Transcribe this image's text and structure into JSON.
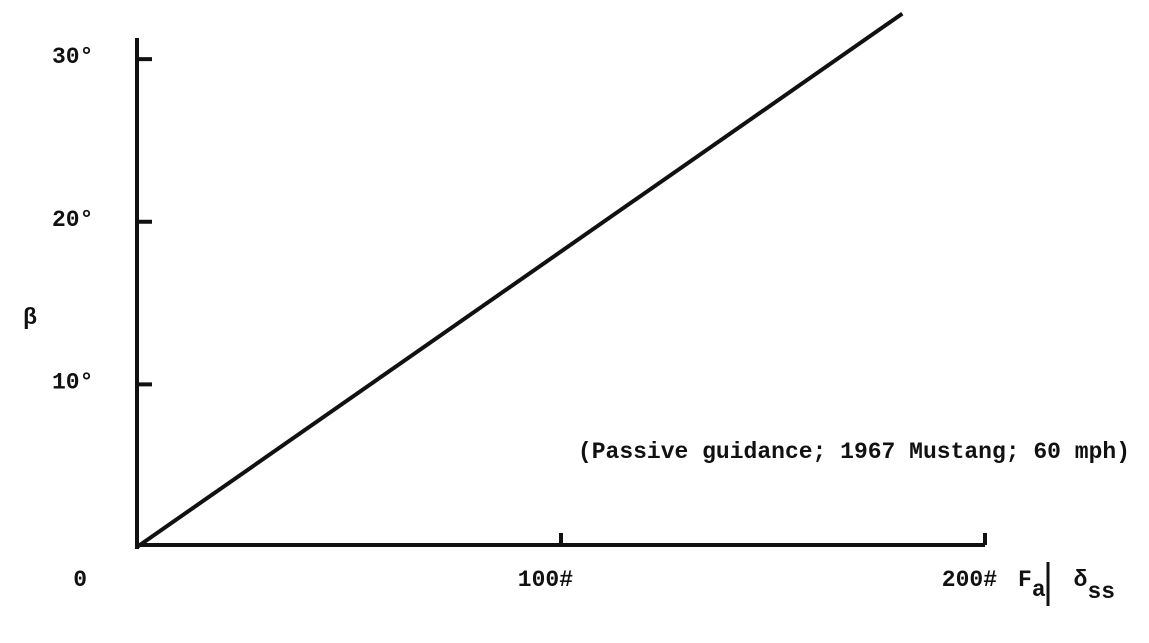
{
  "chart_data": {
    "type": "line",
    "ylabel": "β",
    "xlabel": [
      "F",
      "a",
      "δ",
      "ss"
    ],
    "annotation": "(Passive guidance; 1967 Mustang; 60 mph)",
    "x": [
      0,
      180.5
    ],
    "series": [
      {
        "color": "#111111",
        "values": [
          0,
          32.8
        ]
      }
    ],
    "xlim": [
      0,
      200
    ],
    "ylim": [
      0,
      31.3
    ],
    "xticks": [
      0,
      {
        "value": 100,
        "label": "100#"
      },
      {
        "value": 200,
        "label": "200#"
      }
    ],
    "yticks": [
      {
        "value": 10,
        "label": "10°"
      },
      {
        "value": 20,
        "label": "20°"
      },
      {
        "value": 30,
        "label": "30°"
      }
    ]
  }
}
